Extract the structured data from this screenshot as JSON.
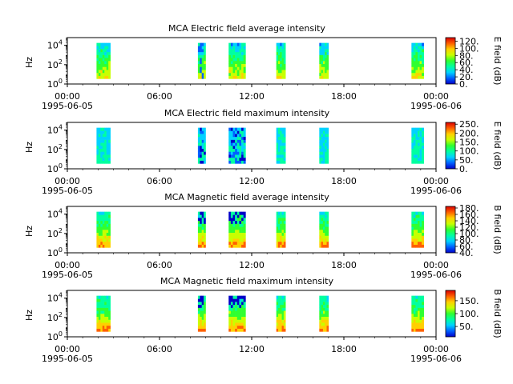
{
  "chart_data": [
    {
      "type": "heatmap",
      "title": "MCA  Electric field average intensity",
      "ylabel": "Hz",
      "y_tick_base": "10",
      "y_tick_exponents": [
        "0",
        "2",
        "4"
      ],
      "y_scale": "log",
      "xlim": [
        "1995-06-05 00:00",
        "1995-06-06 00:00"
      ],
      "x_ticks": [
        "00:00",
        "06:00",
        "12:00",
        "18:00",
        "00:00"
      ],
      "x_date_start": "1995-06-05",
      "x_date_end": "1995-06-06",
      "colorbar": {
        "label": "E field (dB)",
        "min": 0,
        "max": 130,
        "ticks": [
          "0.",
          "20.",
          "40.",
          "60.",
          "80.",
          "100.",
          "120."
        ],
        "tick_values": [
          0,
          20,
          40,
          60,
          80,
          100,
          120
        ]
      }
    },
    {
      "type": "heatmap",
      "title": "MCA  Electric field maximum intensity",
      "ylabel": "Hz",
      "y_tick_base": "10",
      "y_tick_exponents": [
        "0",
        "2",
        "4"
      ],
      "y_scale": "log",
      "xlim": [
        "1995-06-05 00:00",
        "1995-06-06 00:00"
      ],
      "x_ticks": [
        "00:00",
        "06:00",
        "12:00",
        "18:00",
        "00:00"
      ],
      "x_date_start": "1995-06-05",
      "x_date_end": "1995-06-06",
      "colorbar": {
        "label": "E field (dB)",
        "min": 0,
        "max": 260,
        "ticks": [
          "0.",
          "50.",
          "100.",
          "150.",
          "200.",
          "250."
        ],
        "tick_values": [
          0,
          50,
          100,
          150,
          200,
          250
        ]
      }
    },
    {
      "type": "heatmap",
      "title": "MCA  Magnetic field average intensity",
      "ylabel": "Hz",
      "y_tick_base": "10",
      "y_tick_exponents": [
        "0",
        "2",
        "4"
      ],
      "y_scale": "log",
      "xlim": [
        "1995-06-05 00:00",
        "1995-06-06 00:00"
      ],
      "x_ticks": [
        "00:00",
        "06:00",
        "12:00",
        "18:00",
        "00:00"
      ],
      "x_date_start": "1995-06-05",
      "x_date_end": "1995-06-06",
      "colorbar": {
        "label": "B field (dB)",
        "min": 40,
        "max": 185,
        "ticks": [
          "40.",
          "60.",
          "80.",
          "100.",
          "120.",
          "140.",
          "160.",
          "180."
        ],
        "tick_values": [
          40,
          60,
          80,
          100,
          120,
          140,
          160,
          180
        ]
      }
    },
    {
      "type": "heatmap",
      "title": "MCA  Magnetic field maximum intensity",
      "ylabel": "Hz",
      "y_tick_base": "10",
      "y_tick_exponents": [
        "0",
        "2",
        "4"
      ],
      "y_scale": "log",
      "xlim": [
        "1995-06-05 00:00",
        "1995-06-06 00:00"
      ],
      "x_ticks": [
        "00:00",
        "06:00",
        "12:00",
        "18:00",
        "00:00"
      ],
      "x_date_start": "1995-06-05",
      "x_date_end": "1995-06-06",
      "colorbar": {
        "label": "B field (dB)",
        "min": 10,
        "max": 190,
        "ticks": [
          "50.",
          "100.",
          "150."
        ],
        "tick_values": [
          50,
          100,
          150
        ]
      }
    }
  ],
  "data_segments_hours": [
    [
      1.9,
      2.8
    ],
    [
      8.5,
      9.0
    ],
    [
      10.5,
      11.6
    ],
    [
      13.6,
      14.2
    ],
    [
      16.4,
      17.0
    ],
    [
      22.4,
      23.2
    ]
  ],
  "palette": {
    "colormap": [
      "#0000c8",
      "#0060ff",
      "#00d2ff",
      "#00ffa0",
      "#30ff30",
      "#c8ff00",
      "#ffd000",
      "#ff6000",
      "#d80000"
    ]
  }
}
